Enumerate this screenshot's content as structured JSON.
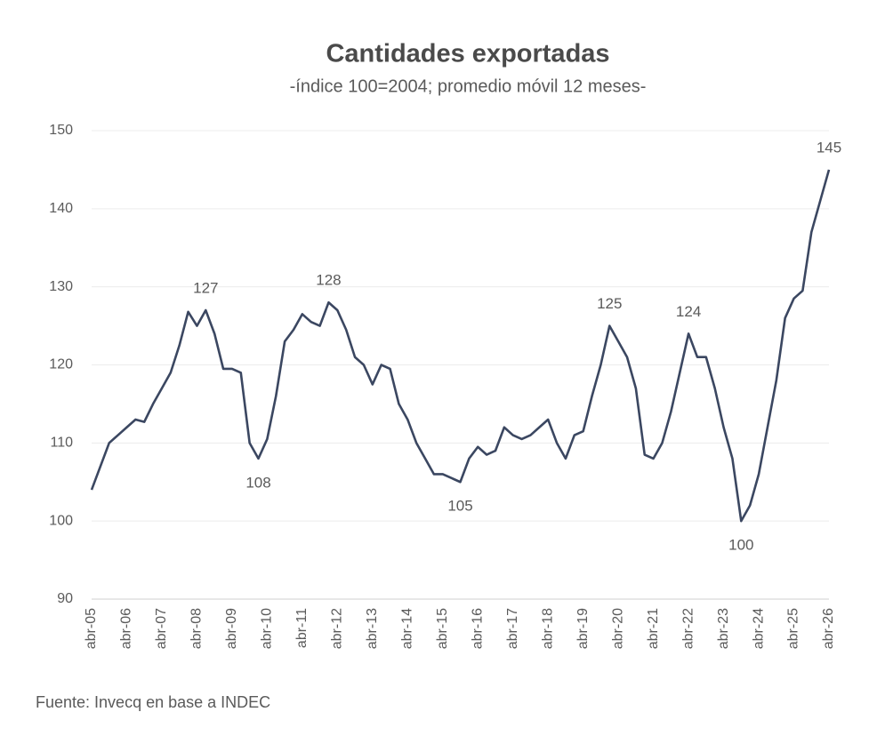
{
  "chart_data": {
    "type": "line",
    "title": "Cantidades exportadas",
    "subtitle": "-índice 100=2004; promedio móvil 12 meses-",
    "source": "Fuente: Invecq en base a INDEC",
    "categories": [
      "abr-05",
      null,
      null,
      null,
      "abr-06",
      null,
      null,
      null,
      "abr-07",
      null,
      null,
      null,
      "abr-08",
      null,
      null,
      null,
      "abr-09",
      null,
      null,
      null,
      "abr-10",
      null,
      null,
      null,
      "abr-11",
      null,
      null,
      null,
      "abr-12",
      null,
      null,
      null,
      "abr-13",
      null,
      null,
      null,
      "abr-14",
      null,
      null,
      null,
      "abr-15",
      null,
      null,
      null,
      "abr-16",
      null,
      null,
      null,
      "abr-17",
      null,
      null,
      null,
      "abr-18",
      null,
      null,
      null,
      "abr-19",
      null,
      null,
      null,
      "abr-20",
      null,
      null,
      null,
      "abr-21",
      null,
      null,
      null,
      "abr-22",
      null,
      null,
      null,
      "abr-23",
      null,
      null,
      null,
      "abr-24",
      null,
      null,
      null,
      "abr-25",
      null,
      null,
      null,
      "abr-26"
    ],
    "values": [
      104,
      107,
      110,
      111,
      112,
      113,
      112.7,
      115,
      117,
      119,
      122.5,
      126.8,
      125,
      127,
      124,
      119.5,
      119.5,
      119,
      110,
      108,
      110.5,
      116,
      123,
      124.5,
      126.5,
      125.5,
      125,
      128,
      127,
      124.5,
      121,
      120,
      117.5,
      120,
      119.5,
      115,
      113,
      110,
      108,
      106,
      106,
      105.5,
      105,
      108,
      109.5,
      108.5,
      109,
      112,
      111,
      110.5,
      111,
      112,
      113,
      110,
      108,
      111,
      111.5,
      116,
      120,
      125,
      123,
      121,
      117,
      108.5,
      108,
      110,
      114,
      119,
      124,
      121,
      121,
      117,
      112,
      108,
      100,
      102,
      106,
      112,
      118,
      126,
      128.5,
      129.5,
      137,
      141,
      145
    ],
    "value_labels": [
      null,
      null,
      null,
      null,
      null,
      null,
      null,
      null,
      null,
      null,
      null,
      null,
      null,
      "127",
      null,
      null,
      null,
      null,
      null,
      "108",
      null,
      null,
      null,
      null,
      null,
      null,
      null,
      "128",
      null,
      null,
      null,
      null,
      null,
      null,
      null,
      null,
      null,
      null,
      null,
      null,
      null,
      null,
      "105",
      null,
      null,
      null,
      null,
      null,
      null,
      null,
      null,
      null,
      null,
      null,
      null,
      null,
      null,
      null,
      null,
      "125",
      null,
      null,
      null,
      null,
      null,
      null,
      null,
      null,
      "124",
      null,
      null,
      null,
      null,
      null,
      "100",
      null,
      null,
      null,
      null,
      null,
      null,
      null,
      null,
      null,
      "145"
    ],
    "color": "#3b4761",
    "ylim": [
      90,
      150
    ],
    "yticks": [
      90,
      100,
      110,
      120,
      130,
      140,
      150
    ],
    "grid": true
  }
}
